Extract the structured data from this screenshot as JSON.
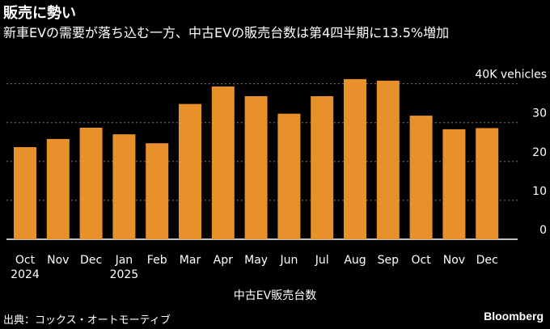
{
  "header": {
    "title": "販売に勢い",
    "subtitle": "新車EVの需要が落ち込む一方、中古EVの販売台数は第4四半期に13.5%増加"
  },
  "footer": {
    "source": "出典：コックス・オートモーティブ",
    "brand": "Bloomberg"
  },
  "colors": {
    "bar": "#e8912a",
    "grid": "#7a7a7a",
    "axis": "#ffffff"
  },
  "chart_data": {
    "type": "bar",
    "categories": [
      "Oct",
      "Nov",
      "Dec",
      "Jan",
      "Feb",
      "Mar",
      "Apr",
      "May",
      "Jun",
      "Jul",
      "Aug",
      "Sep",
      "Oct",
      "Nov",
      "Dec"
    ],
    "year_labels": [
      "2024",
      "",
      "",
      "2025",
      "",
      "",
      "",
      "",
      "",
      "",
      "",
      "",
      "",
      "",
      ""
    ],
    "series": [
      {
        "values": [
          23.7,
          25.8,
          28.7,
          27.0,
          24.7,
          34.8,
          39.3,
          36.8,
          32.3,
          36.8,
          41.2,
          40.8,
          31.8,
          28.3,
          28.6
        ]
      }
    ],
    "xlabel": "中古EV販売台数",
    "ylabel": "",
    "ylim": [
      0,
      42
    ],
    "yticks": [
      0,
      10,
      20,
      30,
      40
    ],
    "ytick_labels": [
      "0",
      "10",
      "20",
      "30",
      "40K vehicles"
    ],
    "grid": true,
    "legend": "none"
  }
}
